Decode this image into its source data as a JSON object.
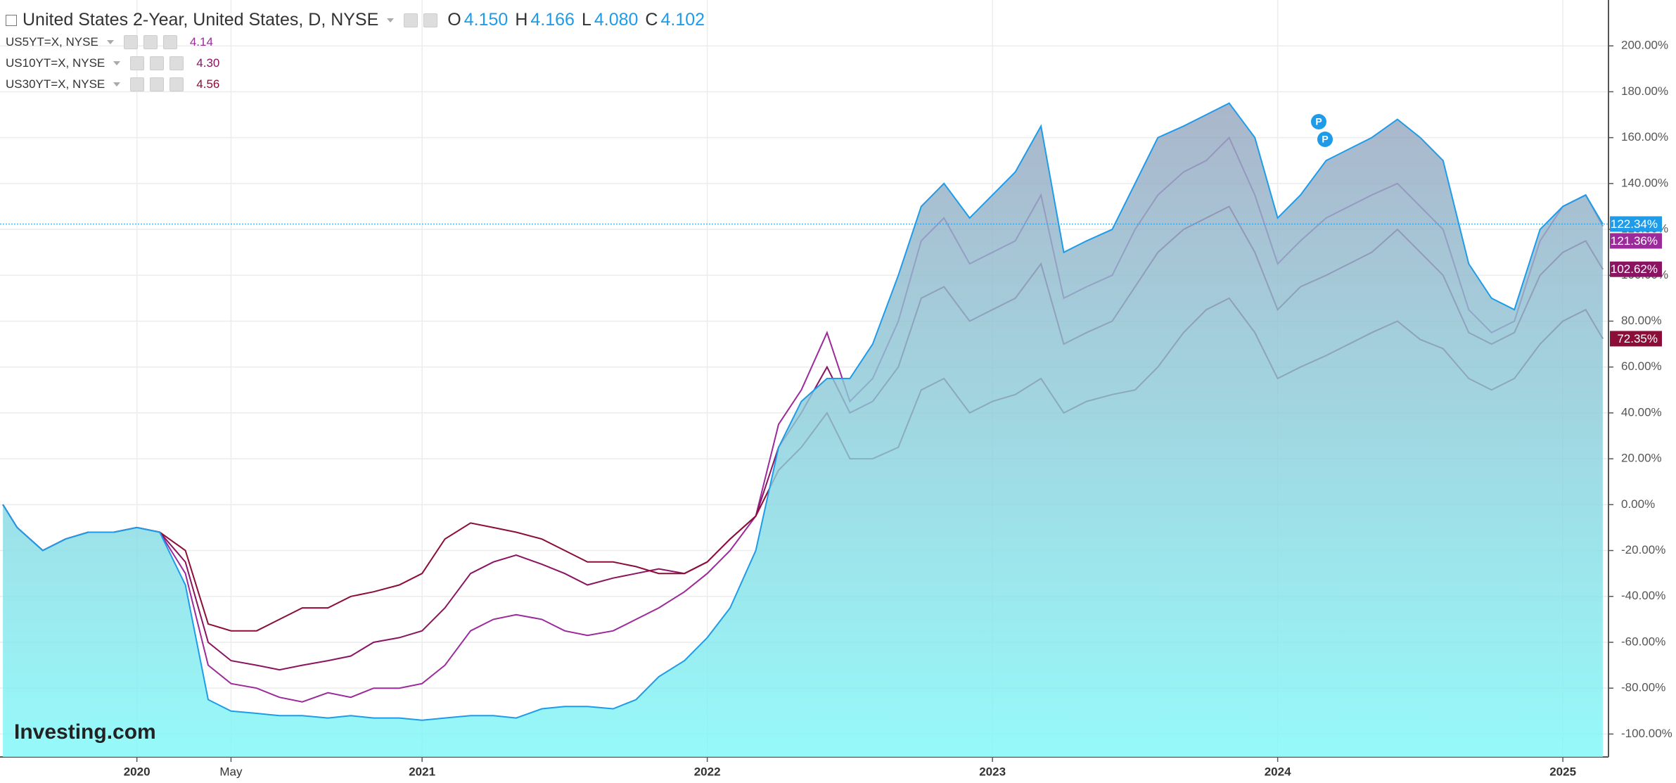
{
  "chart_data": {
    "type": "line",
    "title": "United States 2-Year, United States, D, NYSE",
    "ohlc": [
      {
        "key": "O",
        "value": "4.150"
      },
      {
        "key": "H",
        "value": "4.166"
      },
      {
        "key": "L",
        "value": "4.080"
      },
      {
        "key": "C",
        "value": "4.102"
      }
    ],
    "watermark": "Investing.com",
    "xlim": [
      2019.52,
      2025.16
    ],
    "xticks": [
      2020,
      {
        "value": 2020.33,
        "label": "May"
      },
      2021,
      2022,
      2023,
      2024,
      2025
    ],
    "ylim": [
      -110,
      220
    ],
    "yticks": [
      {
        "value": -100,
        "label": "-100.00%"
      },
      {
        "value": -80,
        "label": "-80.00%"
      },
      {
        "value": -60,
        "label": "-60.00%"
      },
      {
        "value": -40,
        "label": "-40.00%"
      },
      {
        "value": -20,
        "label": "-20.00%"
      },
      {
        "value": 0,
        "label": "0.00%"
      },
      {
        "value": 20,
        "label": "20.00%"
      },
      {
        "value": 40,
        "label": "40.00%"
      },
      {
        "value": 60,
        "label": "60.00%"
      },
      {
        "value": 80,
        "label": "80.00%"
      },
      {
        "value": 100,
        "label": "100.00%"
      },
      {
        "value": 120,
        "label": "120.00%"
      },
      {
        "value": 140,
        "label": "140.00%"
      },
      {
        "value": 160,
        "label": "160.00%"
      },
      {
        "value": 180,
        "label": "180.00%"
      },
      {
        "value": 200,
        "label": "200.00%"
      }
    ],
    "grid": true,
    "x": [
      2019.53,
      2019.58,
      2019.67,
      2019.75,
      2019.83,
      2019.92,
      2020.0,
      2020.08,
      2020.17,
      2020.25,
      2020.33,
      2020.42,
      2020.5,
      2020.58,
      2020.67,
      2020.75,
      2020.83,
      2020.92,
      2021.0,
      2021.08,
      2021.17,
      2021.25,
      2021.33,
      2021.42,
      2021.5,
      2021.58,
      2021.67,
      2021.75,
      2021.83,
      2021.92,
      2022.0,
      2022.08,
      2022.17,
      2022.25,
      2022.33,
      2022.42,
      2022.5,
      2022.58,
      2022.67,
      2022.75,
      2022.83,
      2022.92,
      2023.0,
      2023.08,
      2023.17,
      2023.25,
      2023.33,
      2023.42,
      2023.5,
      2023.58,
      2023.67,
      2023.75,
      2023.83,
      2023.92,
      2024.0,
      2024.08,
      2024.17,
      2024.25,
      2024.33,
      2024.42,
      2024.5,
      2024.58,
      2024.67,
      2024.75,
      2024.83,
      2024.92,
      2025.0,
      2025.08,
      2025.14
    ],
    "series": [
      {
        "color": "#1e9be9",
        "fill": [
          "#98a6bf",
          "#7ff8f8"
        ],
        "end_label": "122.34%",
        "values": [
          0,
          -10,
          -20,
          -15,
          -12,
          -12,
          -10,
          -12,
          -35,
          -85,
          -90,
          -91,
          -92,
          -92,
          -93,
          -92,
          -93,
          -93,
          -94,
          -93,
          -92,
          -92,
          -93,
          -89,
          -88,
          -88,
          -89,
          -85,
          -75,
          -68,
          -58,
          -45,
          -20,
          25,
          45,
          55,
          55,
          70,
          100,
          130,
          140,
          125,
          135,
          145,
          165,
          110,
          115,
          120,
          140,
          160,
          165,
          170,
          175,
          160,
          125,
          135,
          150,
          155,
          160,
          168,
          160,
          150,
          105,
          90,
          85,
          120,
          130,
          135,
          122.34
        ]
      },
      {
        "name": "US5YT=X, NYSE",
        "quote": "4.14",
        "color": "#9b2a9b",
        "end_label": "121.36%",
        "values": [
          0,
          -10,
          -20,
          -15,
          -12,
          -12,
          -10,
          -12,
          -30,
          -70,
          -78,
          -80,
          -84,
          -86,
          -82,
          -84,
          -80,
          -80,
          -78,
          -70,
          -55,
          -50,
          -48,
          -50,
          -55,
          -57,
          -55,
          -50,
          -45,
          -38,
          -30,
          -20,
          -5,
          35,
          50,
          75,
          45,
          55,
          80,
          115,
          125,
          105,
          110,
          115,
          135,
          90,
          95,
          100,
          120,
          135,
          145,
          150,
          160,
          135,
          105,
          115,
          125,
          130,
          135,
          140,
          130,
          120,
          85,
          75,
          80,
          115,
          130,
          135,
          121.36
        ]
      },
      {
        "name": "US10YT=X, NYSE",
        "quote": "4.30",
        "color": "#8a1462",
        "end_label": "102.62%",
        "values": [
          0,
          -10,
          -20,
          -15,
          -12,
          -12,
          -10,
          -12,
          -25,
          -60,
          -68,
          -70,
          -72,
          -70,
          -68,
          -66,
          -60,
          -58,
          -55,
          -45,
          -30,
          -25,
          -22,
          -26,
          -30,
          -35,
          -32,
          -30,
          -28,
          -30,
          -25,
          -15,
          -5,
          25,
          40,
          60,
          40,
          45,
          60,
          90,
          95,
          80,
          85,
          90,
          105,
          70,
          75,
          80,
          95,
          110,
          120,
          125,
          130,
          110,
          85,
          95,
          100,
          105,
          110,
          120,
          110,
          100,
          75,
          70,
          75,
          100,
          110,
          115,
          102.62
        ]
      },
      {
        "name": "US30YT=X, NYSE",
        "quote": "4.56",
        "color": "#8b0d38",
        "end_label": "72.35%",
        "values": [
          0,
          -10,
          -20,
          -15,
          -12,
          -12,
          -10,
          -12,
          -20,
          -52,
          -55,
          -55,
          -50,
          -45,
          -45,
          -40,
          -38,
          -35,
          -30,
          -15,
          -8,
          -10,
          -12,
          -15,
          -20,
          -25,
          -25,
          -27,
          -30,
          -30,
          -25,
          -15,
          -5,
          15,
          25,
          40,
          20,
          20,
          25,
          50,
          55,
          40,
          45,
          48,
          55,
          40,
          45,
          48,
          50,
          60,
          75,
          85,
          90,
          75,
          55,
          60,
          65,
          70,
          75,
          80,
          72,
          68,
          55,
          50,
          55,
          70,
          80,
          85,
          72.35
        ]
      }
    ]
  }
}
